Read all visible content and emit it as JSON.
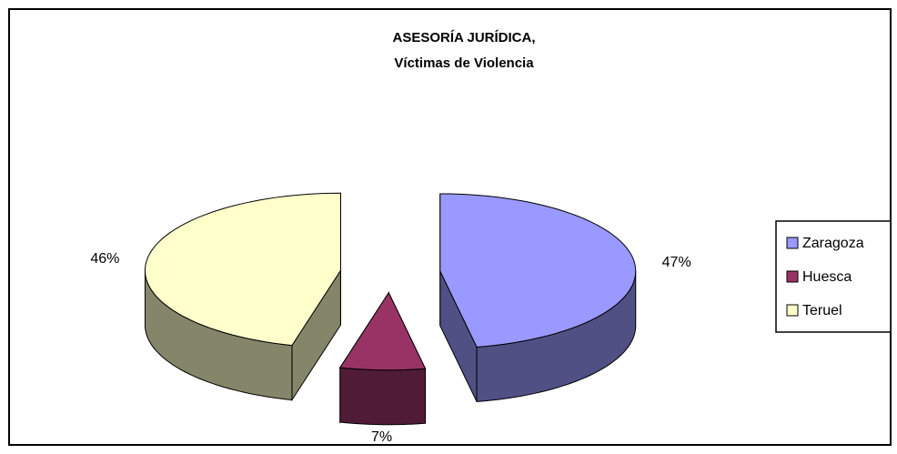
{
  "chart_data": {
    "type": "pie3d",
    "title": [
      "ASESORÍA JURÍDICA,",
      "Víctimas de Violencia"
    ],
    "categories": [
      "Zaragoza",
      "Huesca",
      "Teruel"
    ],
    "values": [
      47,
      7,
      46
    ],
    "value_labels": [
      "47%",
      "7%",
      "46%"
    ],
    "colors": [
      "#9999ff",
      "#993366",
      "#ffffcc"
    ],
    "legend": "right"
  }
}
